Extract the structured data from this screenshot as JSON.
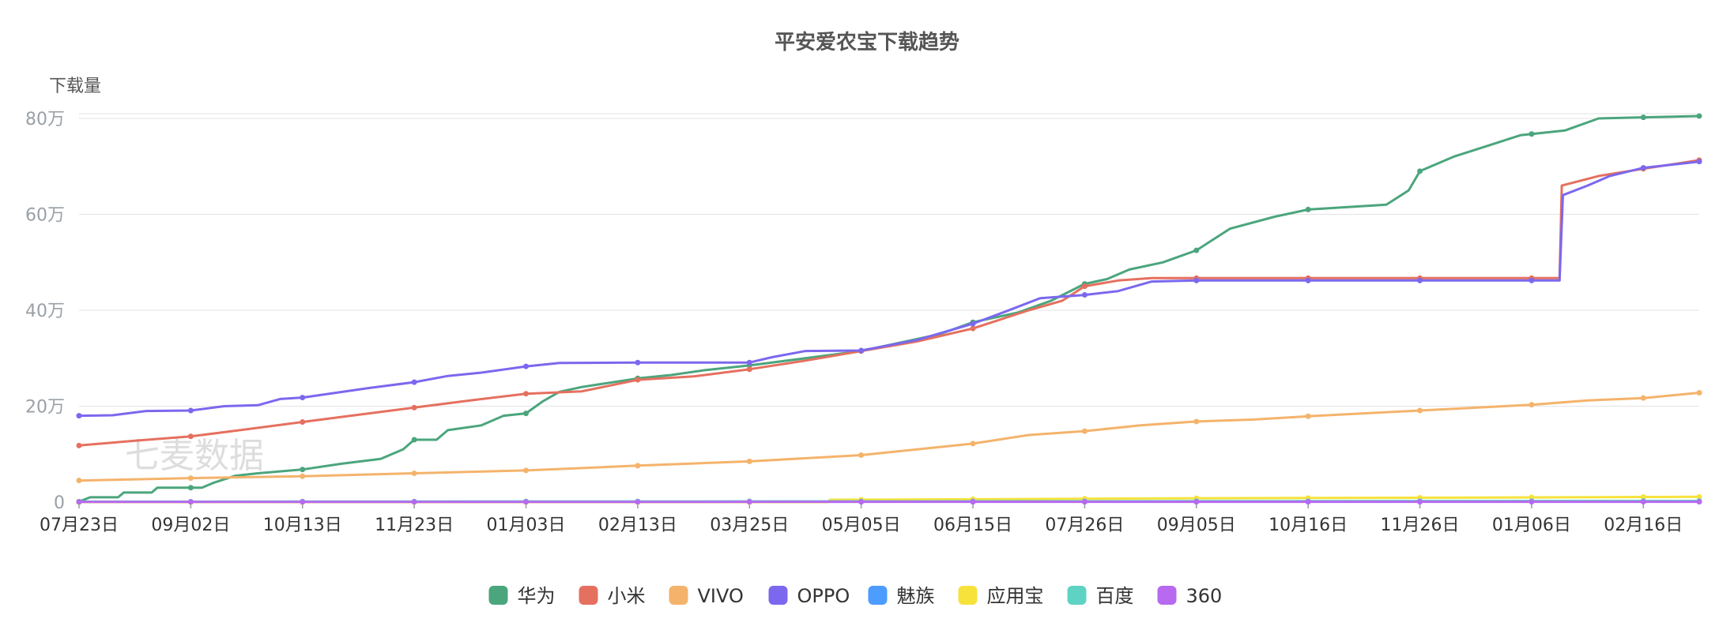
{
  "chart_data": {
    "type": "line",
    "title": "平安爱农宝下载趋势",
    "ylabel": "下载量",
    "xlabel": "",
    "watermark": "七麦数据",
    "y_ticks": [
      {
        "value": 0,
        "label": "0"
      },
      {
        "value": 200000,
        "label": "20万"
      },
      {
        "value": 400000,
        "label": "40万"
      },
      {
        "value": 600000,
        "label": "60万"
      },
      {
        "value": 800000,
        "label": "80万"
      }
    ],
    "ylim": [
      0,
      800000
    ],
    "x_ticks": [
      "07月23日",
      "09月02日",
      "10月13日",
      "11月23日",
      "01月03日",
      "02月13日",
      "03月25日",
      "05月05日",
      "06月15日",
      "07月26日",
      "09月05日",
      "10月16日",
      "11月26日",
      "01月06日",
      "02月16日"
    ],
    "x_range": [
      0,
      14.5
    ],
    "legend_position": "bottom-center",
    "grid": true,
    "series": [
      {
        "name": "华为",
        "color": "#4ba57d",
        "marker_every": 1,
        "points": [
          [
            0,
            1000
          ],
          [
            0.1,
            10000
          ],
          [
            0.35,
            10000
          ],
          [
            0.4,
            20000
          ],
          [
            0.65,
            20000
          ],
          [
            0.7,
            30000
          ],
          [
            1.1,
            30000
          ],
          [
            1.2,
            40000
          ],
          [
            1.4,
            55000
          ],
          [
            1.6,
            60000
          ],
          [
            2.0,
            68000
          ],
          [
            2.35,
            80000
          ],
          [
            2.7,
            90000
          ],
          [
            2.9,
            110000
          ],
          [
            3.0,
            130000
          ],
          [
            3.2,
            130000
          ],
          [
            3.3,
            150000
          ],
          [
            3.6,
            160000
          ],
          [
            3.8,
            180000
          ],
          [
            4.0,
            185000
          ],
          [
            4.15,
            210000
          ],
          [
            4.3,
            230000
          ],
          [
            4.5,
            240000
          ],
          [
            5.0,
            258000
          ],
          [
            5.3,
            265000
          ],
          [
            5.6,
            275000
          ],
          [
            6.0,
            285000
          ],
          [
            6.5,
            300000
          ],
          [
            7.0,
            315000
          ],
          [
            7.3,
            330000
          ],
          [
            7.7,
            350000
          ],
          [
            8.0,
            375000
          ],
          [
            8.4,
            395000
          ],
          [
            8.7,
            420000
          ],
          [
            9.0,
            455000
          ],
          [
            9.2,
            465000
          ],
          [
            9.4,
            485000
          ],
          [
            9.7,
            500000
          ],
          [
            10.0,
            525000
          ],
          [
            10.3,
            570000
          ],
          [
            10.7,
            595000
          ],
          [
            11.0,
            610000
          ],
          [
            11.7,
            620000
          ],
          [
            11.9,
            650000
          ],
          [
            12.0,
            690000
          ],
          [
            12.3,
            720000
          ],
          [
            12.7,
            750000
          ],
          [
            12.9,
            765000
          ],
          [
            13.3,
            775000
          ],
          [
            13.6,
            800000
          ],
          [
            14.5,
            805000
          ]
        ]
      },
      {
        "name": "小米",
        "color": "#e5705f",
        "marker_every": 1,
        "points": [
          [
            0,
            118000
          ],
          [
            0.5,
            128000
          ],
          [
            1.0,
            137000
          ],
          [
            1.5,
            152000
          ],
          [
            2.0,
            167000
          ],
          [
            2.5,
            182000
          ],
          [
            3.0,
            197000
          ],
          [
            3.5,
            212000
          ],
          [
            4.0,
            226000
          ],
          [
            4.5,
            231000
          ],
          [
            5.0,
            255000
          ],
          [
            5.5,
            262000
          ],
          [
            6.0,
            277000
          ],
          [
            6.5,
            295000
          ],
          [
            7.0,
            315000
          ],
          [
            7.5,
            335000
          ],
          [
            8.0,
            362000
          ],
          [
            8.5,
            400000
          ],
          [
            8.8,
            420000
          ],
          [
            9.0,
            450000
          ],
          [
            9.3,
            462000
          ],
          [
            9.6,
            467000
          ],
          [
            10.0,
            467000
          ],
          [
            11.0,
            467000
          ],
          [
            12.0,
            467000
          ],
          [
            13.0,
            467000
          ],
          [
            13.25,
            467000
          ],
          [
            13.27,
            660000
          ],
          [
            13.6,
            680000
          ],
          [
            14.0,
            695000
          ],
          [
            14.5,
            713000
          ]
        ]
      },
      {
        "name": "VIVO",
        "color": "#f4b36b",
        "marker_every": 1,
        "points": [
          [
            0,
            45000
          ],
          [
            1.0,
            50000
          ],
          [
            2.0,
            54000
          ],
          [
            3.0,
            60000
          ],
          [
            4.0,
            66000
          ],
          [
            5.0,
            76000
          ],
          [
            6.0,
            85000
          ],
          [
            7.0,
            98000
          ],
          [
            8.0,
            122000
          ],
          [
            8.5,
            140000
          ],
          [
            9.0,
            148000
          ],
          [
            9.5,
            160000
          ],
          [
            10.0,
            168000
          ],
          [
            10.5,
            172000
          ],
          [
            11.0,
            179000
          ],
          [
            12.0,
            191000
          ],
          [
            13.0,
            203000
          ],
          [
            13.5,
            212000
          ],
          [
            14.0,
            217000
          ],
          [
            14.5,
            228000
          ]
        ]
      },
      {
        "name": "OPPO",
        "color": "#7b68ee",
        "marker_every": 1,
        "points": [
          [
            0,
            180000
          ],
          [
            0.3,
            181000
          ],
          [
            0.6,
            190000
          ],
          [
            1.0,
            191000
          ],
          [
            1.3,
            200000
          ],
          [
            1.6,
            202000
          ],
          [
            1.8,
            215000
          ],
          [
            2.0,
            218000
          ],
          [
            2.3,
            228000
          ],
          [
            2.6,
            238000
          ],
          [
            3.0,
            250000
          ],
          [
            3.3,
            263000
          ],
          [
            3.6,
            270000
          ],
          [
            4.0,
            283000
          ],
          [
            4.3,
            290000
          ],
          [
            5.0,
            291000
          ],
          [
            6.0,
            291000
          ],
          [
            6.2,
            302000
          ],
          [
            6.5,
            315000
          ],
          [
            7.0,
            316000
          ],
          [
            7.5,
            338000
          ],
          [
            8.0,
            372000
          ],
          [
            8.3,
            398000
          ],
          [
            8.6,
            425000
          ],
          [
            9.0,
            432000
          ],
          [
            9.3,
            440000
          ],
          [
            9.6,
            460000
          ],
          [
            10.0,
            462000
          ],
          [
            11.0,
            462000
          ],
          [
            12.0,
            462000
          ],
          [
            13.0,
            462000
          ],
          [
            13.25,
            462000
          ],
          [
            13.28,
            640000
          ],
          [
            13.5,
            660000
          ],
          [
            13.7,
            680000
          ],
          [
            14.0,
            697000
          ],
          [
            14.5,
            710000
          ]
        ]
      },
      {
        "name": "魅族",
        "color": "#4d9cff",
        "marker_every": 1,
        "points": [
          [
            0,
            0
          ],
          [
            5.0,
            500
          ],
          [
            10.0,
            1000
          ],
          [
            14.5,
            1500
          ]
        ]
      },
      {
        "name": "应用宝",
        "color": "#f7e23c",
        "marker_every": 1,
        "points": [
          [
            0,
            0
          ],
          [
            6.7,
            0
          ],
          [
            6.72,
            5000
          ],
          [
            8.0,
            6000
          ],
          [
            10.0,
            8000
          ],
          [
            12.0,
            9000
          ],
          [
            14.5,
            11000
          ]
        ]
      },
      {
        "name": "百度",
        "color": "#5fd3c3",
        "marker_every": 1,
        "points": [
          [
            0,
            1000
          ],
          [
            5.0,
            1500
          ],
          [
            10.0,
            2000
          ],
          [
            14.5,
            2500
          ]
        ]
      },
      {
        "name": "360",
        "color": "#b769f0",
        "marker_every": 1,
        "points": [
          [
            0,
            500
          ],
          [
            5.0,
            500
          ],
          [
            10.0,
            600
          ],
          [
            14.5,
            700
          ]
        ]
      }
    ]
  }
}
